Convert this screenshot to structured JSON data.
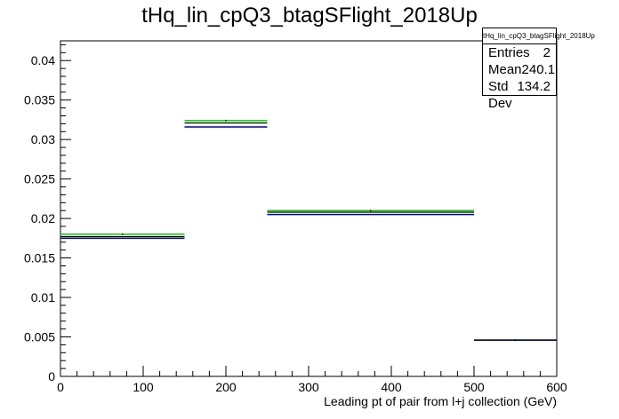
{
  "chart_data": {
    "type": "histogram",
    "title": "tHq_lin_cpQ3_btagSFlight_2018Up",
    "xlabel": "Leading pt of pair from l+j collection (GeV)",
    "ylabel": "",
    "xlim": [
      0,
      600
    ],
    "ylim": [
      0,
      0.0425
    ],
    "x_ticks": [
      0,
      100,
      200,
      300,
      400,
      500,
      600
    ],
    "y_ticks": [
      0,
      0.005,
      0.01,
      0.015,
      0.02,
      0.025,
      0.03,
      0.035,
      0.04
    ],
    "y_tick_labels": [
      "0",
      "0.005",
      "0.01",
      "0.015",
      "0.02",
      "0.025",
      "0.03",
      "0.035",
      "0.04"
    ],
    "bins": [
      {
        "x_low": 0,
        "x_high": 150,
        "value": 0.0177,
        "up": 0.018,
        "down": 0.0175
      },
      {
        "x_low": 150,
        "x_high": 250,
        "value": 0.0321,
        "up": 0.0324,
        "down": 0.0316
      },
      {
        "x_low": 250,
        "x_high": 500,
        "value": 0.0208,
        "up": 0.021,
        "down": 0.0205
      },
      {
        "x_low": 500,
        "x_high": 600,
        "value": 0.0046,
        "up": 0.0046,
        "down": 0.0046
      }
    ],
    "colors": {
      "nominal": "#000000",
      "up": "#00cc00",
      "down": "#000099"
    },
    "stats": {
      "header": "tHq_lin_cpQ3_btagSFlight_2018Up",
      "rows": [
        {
          "label": "Entries",
          "value": "2"
        },
        {
          "label": "Mean",
          "value": "240.1"
        },
        {
          "label": "Std Dev",
          "value": "134.2"
        }
      ]
    }
  }
}
